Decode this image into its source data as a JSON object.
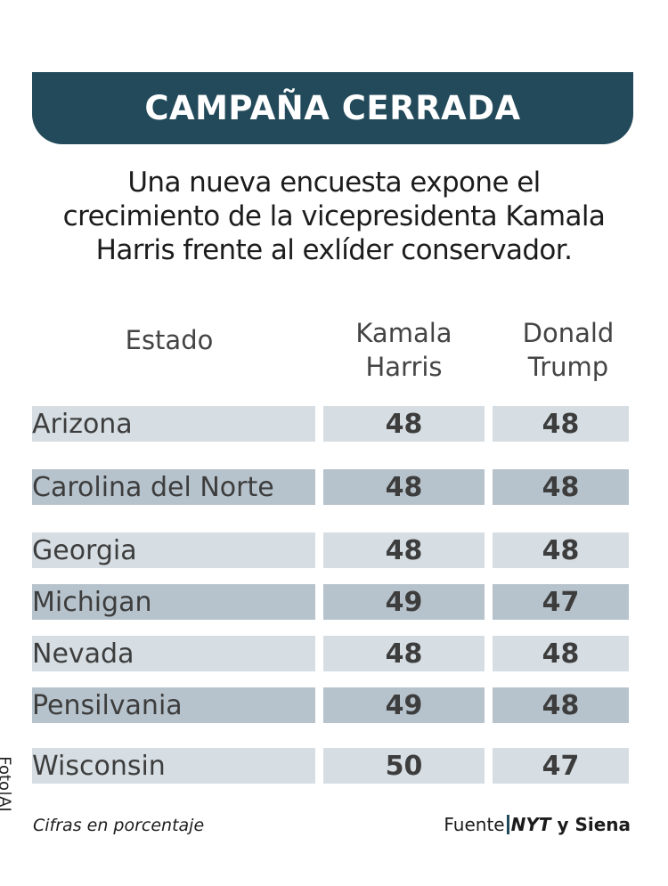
{
  "title": "CAMPAÑA CERRADA",
  "subtitle_lines": [
    "Una nueva encuesta expone el",
    "crecimiento de la vicepresidenta Kamala",
    "Harris frente al exlíder conservador."
  ],
  "colors": {
    "banner": "#234a5a",
    "row_light": "#d6dee3",
    "row_dark": "#b7c3cc"
  },
  "chart_data": {
    "type": "table",
    "columns": [
      "Estado",
      "Kamala Harris",
      "Donald Trump"
    ],
    "column_header_lines": [
      [
        "Estado"
      ],
      [
        "Kamala",
        "Harris"
      ],
      [
        "Donald",
        "Trump"
      ]
    ],
    "rows": [
      {
        "state": "Arizona",
        "harris": "48",
        "trump": "48"
      },
      {
        "state": "Carolina del Norte",
        "harris": "48",
        "trump": "48"
      },
      {
        "state": "Georgia",
        "harris": "48",
        "trump": "48"
      },
      {
        "state": "Michigan",
        "harris": "49",
        "trump": "47"
      },
      {
        "state": "Nevada",
        "harris": "48",
        "trump": "48"
      },
      {
        "state": "Pensilvania",
        "harris": "49",
        "trump": "48"
      },
      {
        "state": "Wisconsin",
        "harris": "50",
        "trump": "47"
      }
    ]
  },
  "footer": {
    "note": "Cifras en porcentaje",
    "source_label": "Fuente",
    "source_bold": "NYT",
    "source_rest": "y Siena",
    "credit": "Foto|AI"
  }
}
